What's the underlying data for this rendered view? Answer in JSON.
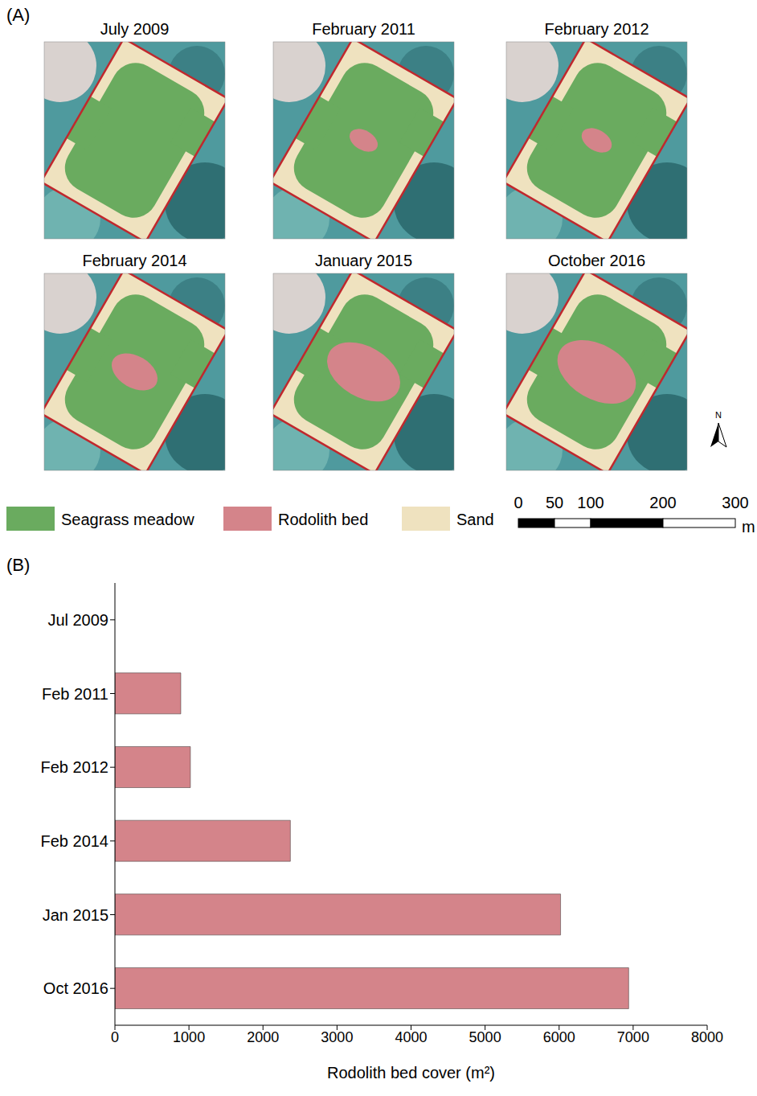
{
  "panel_labels": [
    "(A)",
    "(B)"
  ],
  "maps": {
    "titles": [
      "July 2009",
      "February 2011",
      "February 2012",
      "February 2014",
      "January 2015",
      "October 2016"
    ],
    "legend": [
      {
        "name": "Seagrass meadow",
        "color": "#6aab5f"
      },
      {
        "name": "Rodolith bed",
        "color": "#d4848a"
      },
      {
        "name": "Sand",
        "color": "#efe2bf"
      }
    ],
    "scale_bar": {
      "ticks": [
        0,
        50,
        100,
        200,
        300
      ],
      "unit": "m"
    },
    "north": "N"
  },
  "chart_data": {
    "type": "bar",
    "orientation": "horizontal",
    "categories": [
      "Jul 2009",
      "Feb 2011",
      "Feb 2012",
      "Feb 2014",
      "Jan 2015",
      "Oct 2016"
    ],
    "values": [
      0,
      890,
      1020,
      2370,
      6020,
      6940
    ],
    "color": "#d4848a",
    "x_label": "Rodolith bed cover (m²)",
    "xlim": [
      0,
      8000
    ],
    "xticks": [
      0,
      1000,
      2000,
      3000,
      4000,
      5000,
      6000,
      7000,
      8000
    ],
    "grid": false
  }
}
